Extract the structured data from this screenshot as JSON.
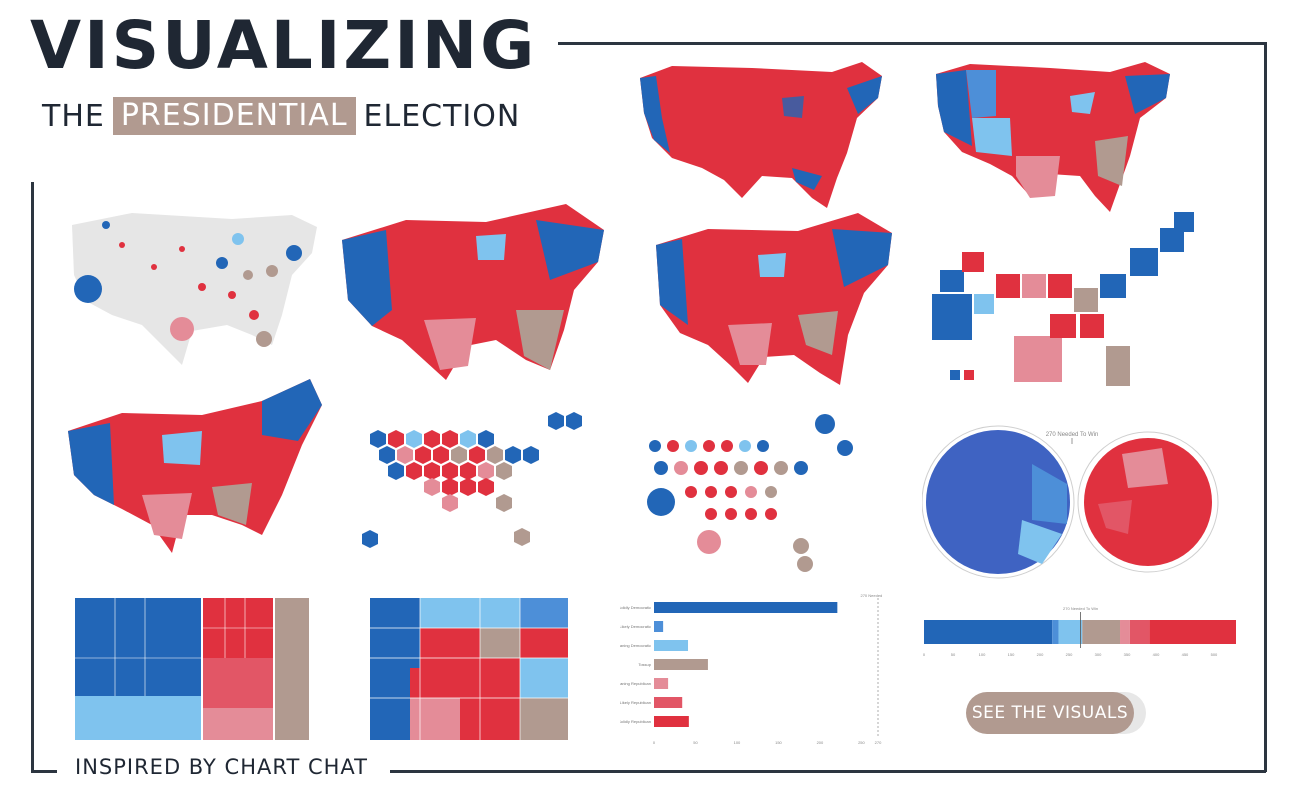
{
  "header": {
    "title": "VISUALIZING",
    "subtitle_before": "THE",
    "subtitle_highlight": "PRESIDENTIAL",
    "subtitle_after": "ELECTION"
  },
  "footer": {
    "text": "INSPIRED BY CHART CHAT"
  },
  "cta": {
    "label": "SEE THE VISUALS",
    "arrow": "»"
  },
  "colors": {
    "dark_blue": "#2266b7",
    "mid_blue": "#4d8fd8",
    "light_blue": "#7fc3ee",
    "tossup": "#b19a90",
    "light_red": "#e48c98",
    "mid_red": "#e25666",
    "dark_red": "#e0313f"
  },
  "bar_chart": {
    "categories": [
      "Solidly Democratic",
      "Likely Democratic",
      "Leaning Democratic",
      "Tossup",
      "Leaning Republican",
      "Likely Republican",
      "Solidly Republican"
    ],
    "values": [
      221,
      11,
      41,
      65,
      17,
      34,
      42
    ],
    "needed_label": "270 Needed To Win",
    "axis_ticks": [
      "0",
      "50",
      "100",
      "150",
      "200",
      "250",
      "270"
    ]
  },
  "stacked_bar": {
    "needed_label": "270 Needed To Win",
    "ticks": [
      "0",
      "50",
      "100",
      "150",
      "200",
      "250",
      "300",
      "350",
      "400",
      "450",
      "500"
    ]
  },
  "voronoi": {
    "needed_label": "270 Needed To Win"
  }
}
